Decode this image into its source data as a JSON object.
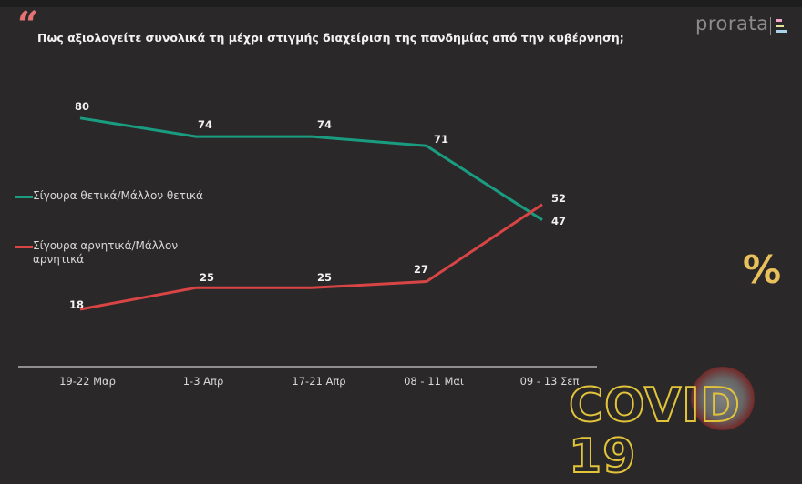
{
  "header": {
    "quote_mark": "“",
    "title": "Πως αξιολογείτε συνολικά τη μέχρι στιγμής διαχείριση της πανδημίας από την κυβέρνηση;",
    "brand": "prorata",
    "brand_colors": [
      "#f4a6c8",
      "#e6e49a",
      "#a9d3e6"
    ]
  },
  "legend": [
    {
      "label": "Σίγουρα θετικά/Μάλλον θετικά",
      "color": "#1a9c80"
    },
    {
      "label": "Σίγουρα αρνητικά/Μάλλον αρνητικά",
      "color": "#d94545"
    }
  ],
  "decor": {
    "percent_icon": "%",
    "covid_label": "COVID 19",
    "accent_yellow": "#e2c43a"
  },
  "chart_data": {
    "type": "line",
    "title": "Πως αξιολογείτε συνολικά τη μέχρι στιγμής διαχείριση της πανδημίας από την κυβέρνηση;",
    "categories": [
      "19-22 Μαρ",
      "1-3 Απρ",
      "17-21 Απρ",
      "08 - 11 Μαι",
      "09 - 13 Σεπ"
    ],
    "series": [
      {
        "name": "Σίγουρα θετικά/Μάλλον θετικά",
        "values": [
          80,
          74,
          74,
          71,
          47
        ],
        "color": "#1a9c80"
      },
      {
        "name": "Σίγουρα αρνητικά/Μάλλον αρνητικά",
        "values": [
          18,
          25,
          25,
          27,
          52
        ],
        "color": "#d94545"
      }
    ],
    "xlabel": "",
    "ylabel": "",
    "grid": false,
    "legend_position": "left",
    "data_labels": true
  }
}
